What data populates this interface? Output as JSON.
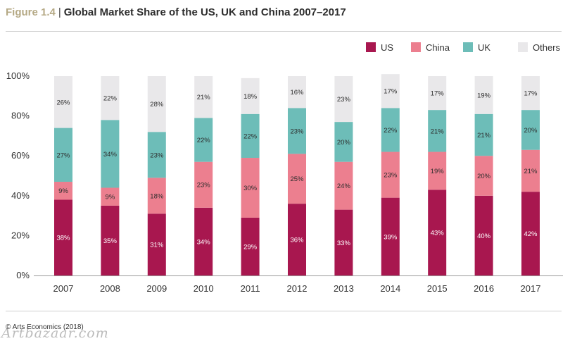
{
  "header": {
    "figure_label": "Figure 1.4",
    "separator": "|",
    "title": "Global Market Share of the US, UK and China 2007–2017"
  },
  "footer": {
    "source": "© Arts Economics (2018)",
    "watermark": "Artbazaar.com"
  },
  "chart_data": {
    "type": "bar",
    "stacked": true,
    "categories": [
      "2007",
      "2008",
      "2009",
      "2010",
      "2011",
      "2012",
      "2013",
      "2014",
      "2015",
      "2016",
      "2017"
    ],
    "series": [
      {
        "name": "US",
        "color": "#a8174f",
        "label_color": "#ffffff",
        "values": [
          38,
          35,
          31,
          34,
          29,
          36,
          33,
          39,
          43,
          40,
          42
        ]
      },
      {
        "name": "China",
        "color": "#ec7f8f",
        "label_color": "#2d2d2d",
        "values": [
          9,
          9,
          18,
          23,
          30,
          25,
          24,
          23,
          19,
          20,
          21
        ]
      },
      {
        "name": "UK",
        "color": "#6dbdb8",
        "label_color": "#2d2d2d",
        "values": [
          27,
          34,
          23,
          22,
          22,
          23,
          20,
          22,
          21,
          21,
          20
        ]
      },
      {
        "name": "Others",
        "color": "#e9e8ea",
        "label_color": "#2d2d2d",
        "values": [
          26,
          22,
          28,
          21,
          18,
          16,
          23,
          17,
          17,
          19,
          17
        ]
      }
    ],
    "ylim": [
      0,
      100
    ],
    "yticks": [
      "0%",
      "20%",
      "40%",
      "60%",
      "80%",
      "100%"
    ],
    "ytick_values": [
      0,
      20,
      40,
      60,
      80,
      100
    ],
    "value_suffix": "%",
    "grid": false,
    "legend_position": "top-right"
  }
}
